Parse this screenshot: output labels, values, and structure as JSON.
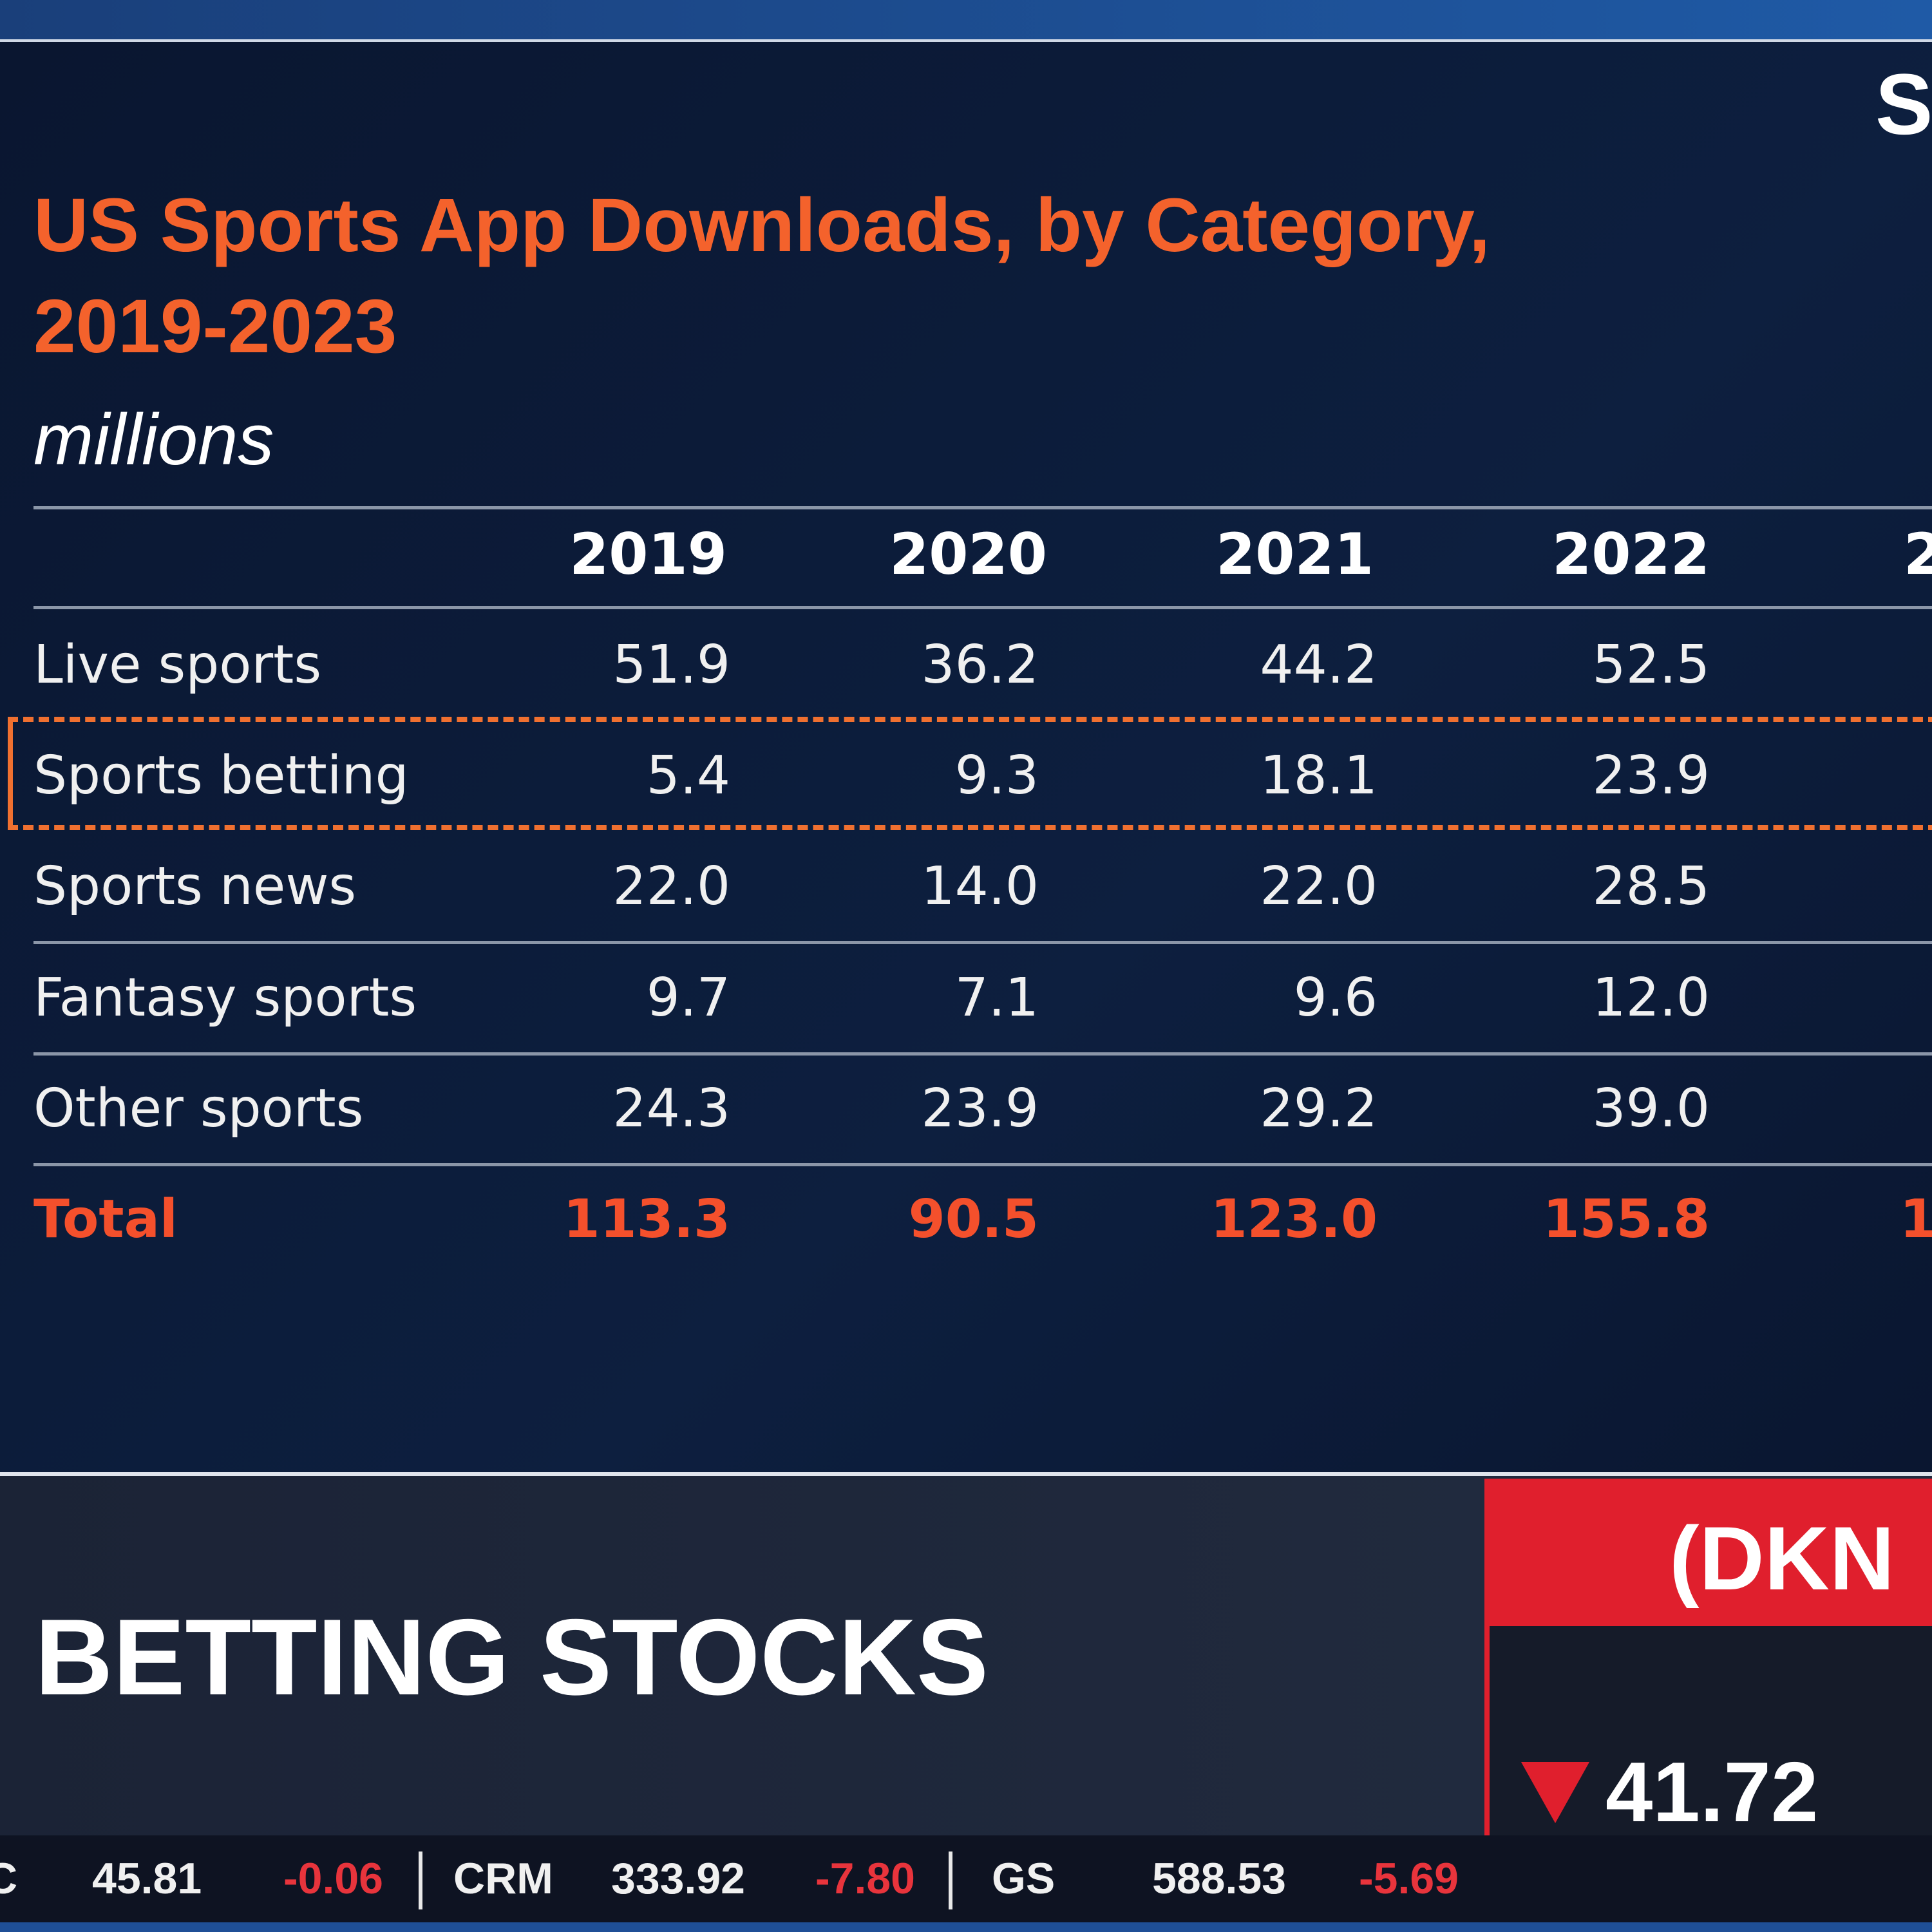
{
  "header": {
    "logo": "S",
    "title_lines": [
      "US Sports App Downloads, by Category,",
      "2019-2023"
    ],
    "subtitle": "millions"
  },
  "table": {
    "columns": [
      "2019",
      "2020",
      "2021",
      "2022",
      "2"
    ],
    "rows": [
      {
        "label": "Live sports",
        "values": [
          "51.9",
          "36.2",
          "44.2",
          "52.5"
        ]
      },
      {
        "label": "Sports betting",
        "values": [
          "5.4",
          "9.3",
          "18.1",
          "23.9"
        ]
      },
      {
        "label": "Sports news",
        "values": [
          "22.0",
          "14.0",
          "22.0",
          "28.5"
        ]
      },
      {
        "label": "Fantasy sports",
        "values": [
          "9.7",
          "7.1",
          "9.6",
          "12.0"
        ]
      },
      {
        "label": "Other sports",
        "values": [
          "24.3",
          "23.9",
          "29.2",
          "39.0"
        ]
      }
    ],
    "total": {
      "label": "Total",
      "values": [
        "113.3",
        "90.5",
        "123.0",
        "155.8",
        "1"
      ]
    }
  },
  "lower_third": {
    "headline": "BETTING STOCKS",
    "ticker_symbol": "(DKN",
    "price": "41.72"
  },
  "ticker": [
    {
      "symbol": "C",
      "price": "45.81",
      "change": "-0.06"
    },
    {
      "symbol": "CRM",
      "price": "333.92",
      "change": "-7.80"
    },
    {
      "symbol": "GS",
      "price": "588.53",
      "change": "-5.69"
    }
  ]
}
